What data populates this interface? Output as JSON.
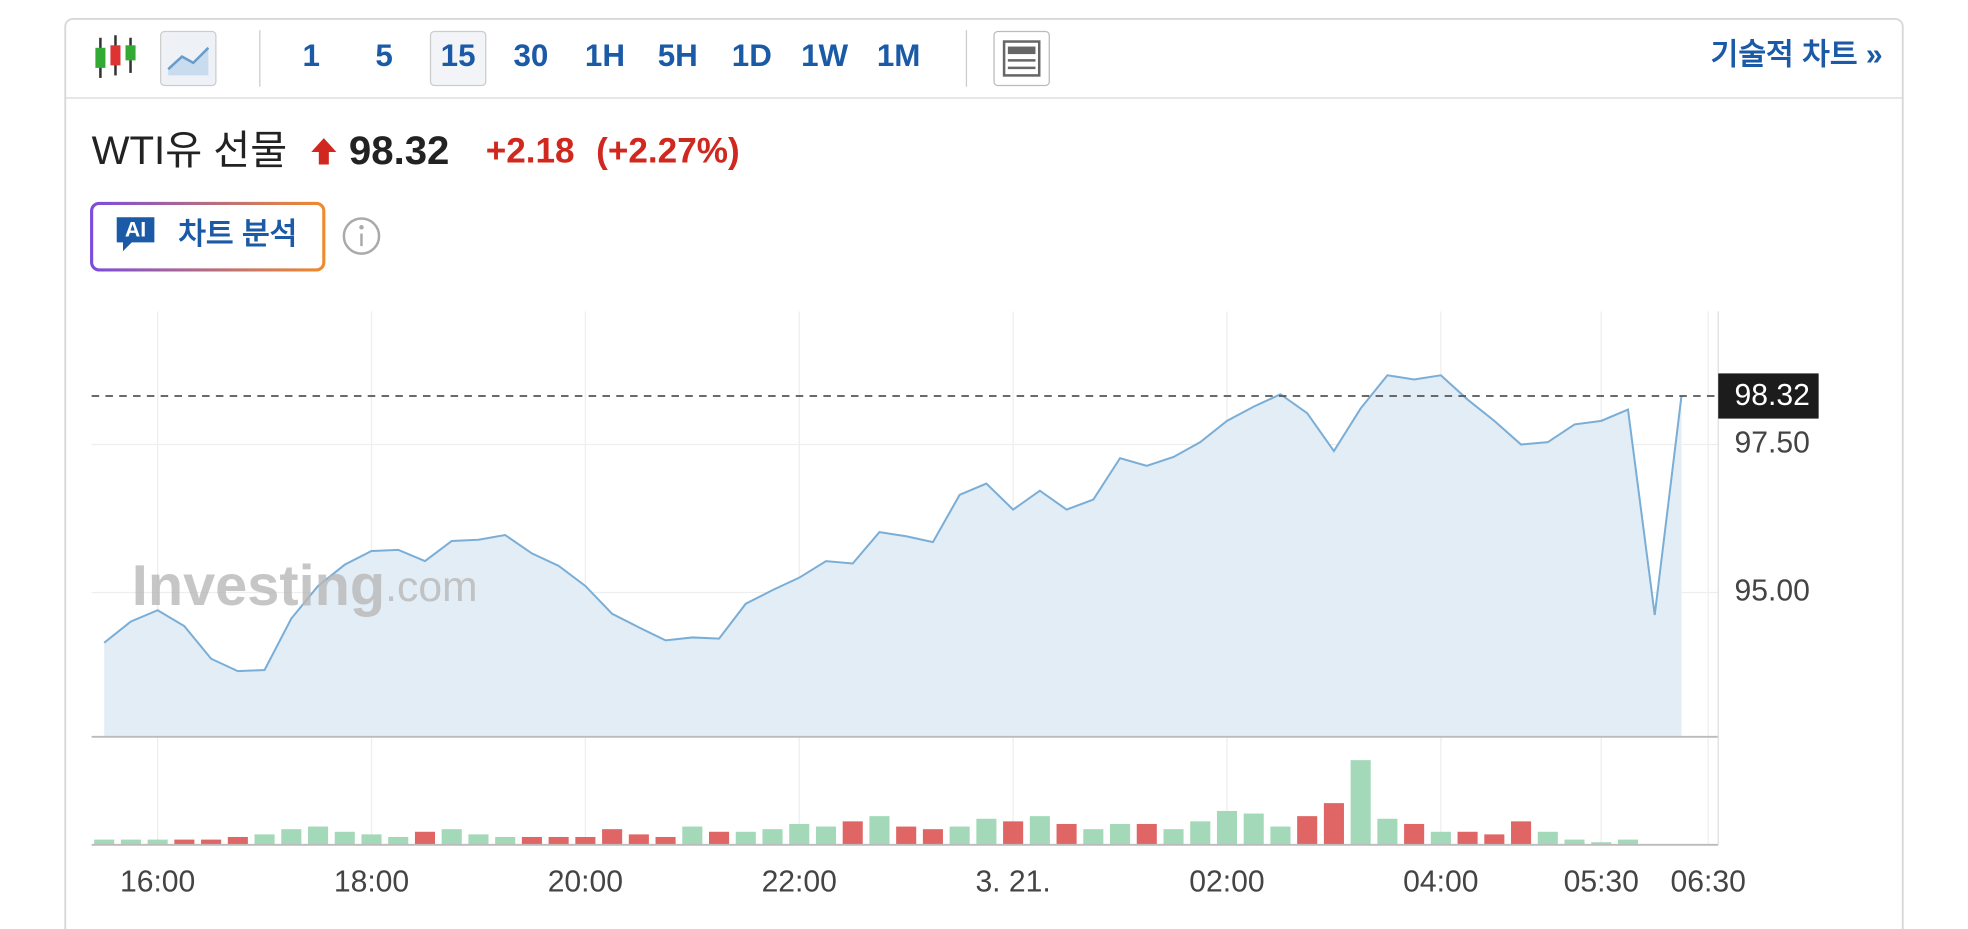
{
  "toolbar": {
    "intervals": [
      "1",
      "5",
      "15",
      "30",
      "1H",
      "5H",
      "1D",
      "1W",
      "1M"
    ],
    "technical_link": "기술적 차트 »"
  },
  "quote": {
    "name": "WTI유 선물",
    "change": "+2.18",
    "change_pct": "(+2.27%)"
  },
  "ai_button": {
    "badge": "AI",
    "label": "차트 분석"
  },
  "watermark": {
    "brand": "Investing",
    "suffix": ".com"
  },
  "chart_data": [
    {
      "type": "line",
      "color": "#7aaed6",
      "fill": "#e3edf6",
      "categories": [
        null,
        null,
        "16:00",
        null,
        null,
        null,
        null,
        null,
        null,
        null,
        "18:00",
        null,
        null,
        null,
        null,
        null,
        null,
        null,
        "20:00",
        null,
        null,
        null,
        null,
        null,
        null,
        null,
        "22:00",
        null,
        null,
        null,
        null,
        null,
        null,
        null,
        "3. 21.",
        null,
        null,
        null,
        null,
        null,
        null,
        null,
        "02:00",
        null,
        null,
        null,
        null,
        null,
        null,
        null,
        "04:00",
        null,
        null,
        null,
        null,
        null,
        "05:30",
        null,
        null,
        null,
        "06:30"
      ],
      "values": [
        94.15,
        94.51,
        94.7,
        94.43,
        93.88,
        93.67,
        93.69,
        94.56,
        95.11,
        95.47,
        95.7,
        95.72,
        95.53,
        95.87,
        95.89,
        95.97,
        95.66,
        95.45,
        95.11,
        94.64,
        94.41,
        94.19,
        94.24,
        94.22,
        94.81,
        95.04,
        95.25,
        95.53,
        95.49,
        96.02,
        95.95,
        95.85,
        96.65,
        96.84,
        96.4,
        96.72,
        96.4,
        96.57,
        97.27,
        97.14,
        97.29,
        97.54,
        97.9,
        98.14,
        98.35,
        98.03,
        97.39,
        98.11,
        98.67,
        98.6,
        98.67,
        98.26,
        97.9,
        97.5,
        97.54,
        97.84,
        97.9,
        98.09,
        94.62,
        98.32,
        null
      ],
      "ylim": [
        92.56,
        99.75
      ],
      "yticks": [
        {
          "value": 97.5,
          "label": "97.50"
        },
        {
          "value": 95,
          "label": "95.00"
        }
      ],
      "grid": true
    },
    {
      "type": "bar",
      "ylim": [
        0,
        80
      ],
      "values": [
        4,
        4,
        4,
        4,
        4,
        6,
        8,
        12,
        14,
        10,
        8,
        6,
        10,
        12,
        8,
        6,
        6,
        6,
        6,
        12,
        8,
        6,
        14,
        10,
        10,
        12,
        16,
        14,
        18,
        22,
        14,
        12,
        14,
        20,
        18,
        22,
        16,
        12,
        16,
        16,
        12,
        18,
        26,
        24,
        14,
        22,
        32,
        65,
        20,
        16,
        10,
        10,
        8,
        18,
        10,
        4,
        2,
        4,
        null,
        null,
        null
      ],
      "colors": [
        "#a3d9b8",
        "#a3d9b8",
        "#a3d9b8",
        "#e06666",
        "#e06666",
        "#e06666",
        "#a3d9b8",
        "#a3d9b8",
        "#a3d9b8",
        "#a3d9b8",
        "#a3d9b8",
        "#a3d9b8",
        "#e06666",
        "#a3d9b8",
        "#a3d9b8",
        "#a3d9b8",
        "#e06666",
        "#e06666",
        "#e06666",
        "#e06666",
        "#e06666",
        "#e06666",
        "#a3d9b8",
        "#e06666",
        "#a3d9b8",
        "#a3d9b8",
        "#a3d9b8",
        "#a3d9b8",
        "#e06666",
        "#a3d9b8",
        "#e06666",
        "#e06666",
        "#a3d9b8",
        "#a3d9b8",
        "#e06666",
        "#a3d9b8",
        "#e06666",
        "#a3d9b8",
        "#a3d9b8",
        "#e06666",
        "#a3d9b8",
        "#a3d9b8",
        "#a3d9b8",
        "#a3d9b8",
        "#a3d9b8",
        "#e06666",
        "#e06666",
        "#a3d9b8",
        "#a3d9b8",
        "#e06666",
        "#a3d9b8",
        "#e06666",
        "#e06666",
        "#e06666",
        "#a3d9b8",
        "#a3d9b8",
        "#a3d9b8",
        "#a3d9b8",
        null,
        null,
        null
      ]
    }
  ]
}
